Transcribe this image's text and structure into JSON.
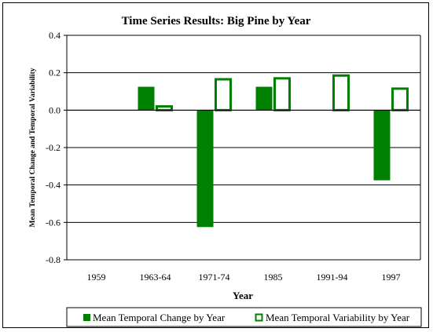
{
  "chart_data": {
    "type": "bar",
    "title": "Time Series Results:  Big Pine by Year",
    "xlabel": "Year",
    "ylabel": "Mean Temporal Change and Temporal Variability",
    "ylim": [
      -0.8,
      0.4
    ],
    "yticks": [
      0.4,
      0.2,
      0.0,
      -0.2,
      -0.4,
      -0.6,
      -0.8
    ],
    "ytick_labels": [
      "0.4",
      "0.2",
      "0.0",
      "-0.2",
      "-0.4",
      "-0.6",
      "-0.8"
    ],
    "grid": true,
    "legend_position": "bottom",
    "categories": [
      "1959",
      "1963-64",
      "1971-74",
      "1985",
      "1991-94",
      "1997"
    ],
    "series": [
      {
        "name": "Mean Temporal Change by Year",
        "style": "filled",
        "color": "#008000",
        "values": [
          null,
          0.125,
          -0.625,
          0.125,
          null,
          -0.375
        ]
      },
      {
        "name": "Mean Temporal Variability by Year",
        "style": "outline",
        "color": "#008000",
        "values": [
          null,
          0.02,
          0.165,
          0.17,
          0.185,
          0.115
        ]
      }
    ]
  }
}
